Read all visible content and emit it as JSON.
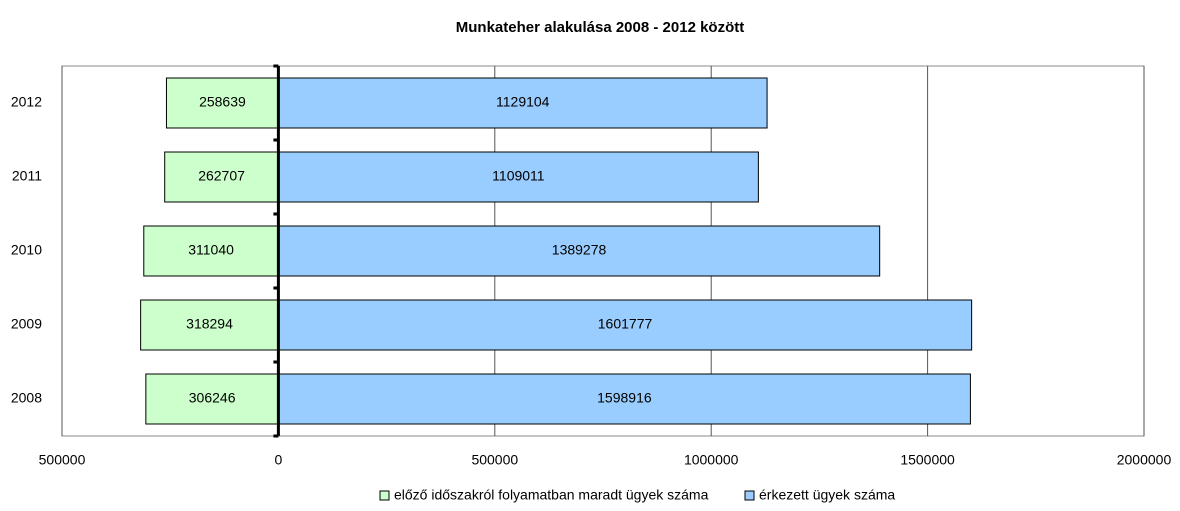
{
  "chart_data": {
    "type": "bar",
    "orientation": "horizontal",
    "stacked": true,
    "title": "Munkateher alakulása 2008 - 2012 között",
    "categories": [
      "2008",
      "2009",
      "2010",
      "2011",
      "2012"
    ],
    "series": [
      {
        "name": "előző időszakról folyamatban maradt ügyek száma",
        "color": "#ccffcc",
        "values": [
          -306246,
          -318294,
          -311040,
          -262707,
          -258639
        ],
        "value_labels": [
          "306246",
          "318294",
          "311040",
          "262707",
          "258639"
        ]
      },
      {
        "name": "érkezett ügyek száma",
        "color": "#99ccff",
        "values": [
          1598916,
          1601777,
          1389278,
          1109011,
          1129104
        ]
      }
    ],
    "xlim": [
      -500000,
      2000000
    ],
    "xticks": [
      {
        "value": -500000,
        "label": "500000"
      },
      0,
      500000,
      1000000,
      1500000,
      2000000
    ],
    "grid": true,
    "legend": "bottom"
  }
}
